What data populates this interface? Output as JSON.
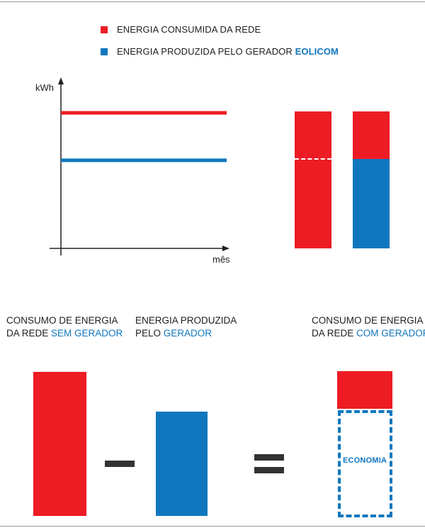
{
  "colors": {
    "red": "#ed1c24",
    "blue": "#1077bf",
    "dark": "#333333"
  },
  "legend": {
    "consumed": "ENERGIA CONSUMIDA DA REDE",
    "produced": "ENERGIA PRODUZIDA PELO GERADOR ",
    "brand": "EOLICOM"
  },
  "chart_data": {
    "type": "line",
    "xlabel": "mês",
    "ylabel": "kWh",
    "series": [
      {
        "name": "ENERGIA CONSUMIDA DA REDE",
        "color": "#ed1c24",
        "values": [
          1.0,
          1.0
        ]
      },
      {
        "name": "ENERGIA PRODUZIDA PELO GERADOR EOLICOM",
        "color": "#1077bf",
        "values": [
          0.65,
          0.65
        ]
      }
    ],
    "grid": false,
    "legend_position": "top"
  },
  "comparison": {
    "without": {
      "line1": "CONSUMO DE ENERGIA",
      "line2_prefix": "DA REDE ",
      "line2_accent": "SEM GERADOR"
    },
    "produced": {
      "line1": "ENERGIA PRODUZIDA",
      "line2_prefix": "PELO ",
      "line2_accent": "GERADOR"
    },
    "with": {
      "line1": "CONSUMO DE ENERGIA",
      "line2_prefix": "DA REDE ",
      "line2_accent": "COM GERADOR"
    },
    "savings_label": "ECONOMIA"
  }
}
